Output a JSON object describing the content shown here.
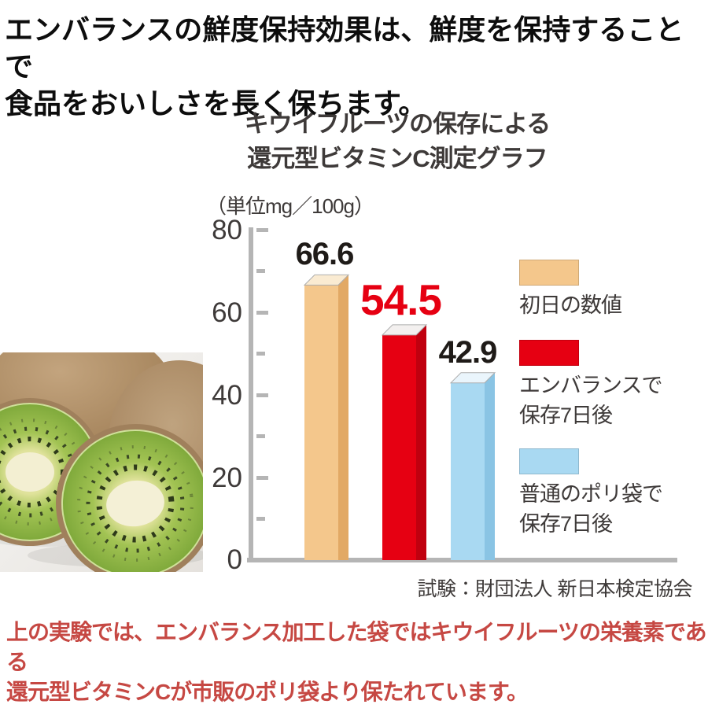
{
  "heading": {
    "line1": "エンバランスの鮮度保持効果は、鮮度を保持することで",
    "line2": "食品をおいしさを長く保ちます。"
  },
  "chart_data": {
    "type": "bar",
    "title_line1": "キウイフルーツの保存による",
    "title_line2": "還元型ビタミンC測定グラフ",
    "unit_label": "（単位mg／100g）",
    "categories": [
      "初日の数値",
      "エンバランスで保存7日後",
      "普通のポリ袋で保存7日後"
    ],
    "values": [
      66.6,
      54.5,
      42.9
    ],
    "value_labels": [
      "66.6",
      "54.5",
      "42.9"
    ],
    "value_label_colors": [
      "#1f1b18",
      "#e60012",
      "#1f1b18"
    ],
    "ylim": [
      0,
      80
    ],
    "yticks": [
      0,
      20,
      40,
      60,
      80
    ],
    "minor_yticks": [
      10,
      30,
      50,
      70
    ],
    "grid": false,
    "legend_position": "right",
    "bar_colors": [
      {
        "front": "#f4c78c",
        "side": "#e2a965",
        "top": "#faebd2"
      },
      {
        "front": "#e60012",
        "side": "#c0000f",
        "top": "#f3f0ef"
      },
      {
        "front": "#a9d9f2",
        "side": "#8ac4e4",
        "top": "#eaf5fc"
      }
    ],
    "legend": [
      {
        "color": "#f4c78c",
        "lines": [
          "初日の数値"
        ]
      },
      {
        "color": "#e60012",
        "lines": [
          "エンバランスで",
          "保存7日後"
        ]
      },
      {
        "color": "#a9d9f2",
        "lines": [
          "普通のポリ袋で",
          "保存7日後"
        ]
      }
    ],
    "source": "試験：財団法人 新日本検定協会"
  },
  "footer": {
    "line1": "上の実験では、エンバランス加工した袋ではキウイフルーツの栄養素である",
    "line2": "還元型ビタミンCが市販のポリ袋より保たれています。"
  }
}
